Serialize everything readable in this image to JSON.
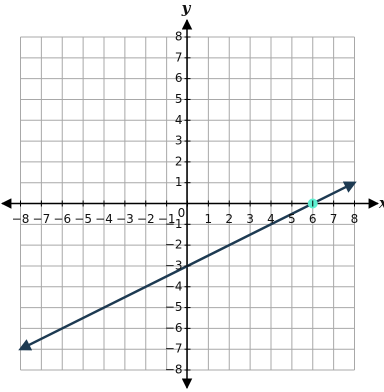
{
  "chart_data": {
    "type": "line",
    "xlabel": "x",
    "ylabel": "y",
    "x": [
      -8,
      8
    ],
    "series": [
      {
        "color": "#1d3a52",
        "values": [
          -7,
          1
        ]
      }
    ],
    "points": {
      "x": [
        6
      ],
      "y": [
        0
      ],
      "color": "#5ff0d2"
    },
    "xlim": [
      -8,
      8
    ],
    "ylim": [
      -8,
      8
    ],
    "xticks": [
      {
        "value": -8,
        "label": "−8"
      },
      {
        "value": -7,
        "label": "−7"
      },
      {
        "value": -6,
        "label": "−6"
      },
      {
        "value": -5,
        "label": "−5"
      },
      {
        "value": -4,
        "label": "−4"
      },
      {
        "value": -3,
        "label": "−3"
      },
      {
        "value": -2,
        "label": "−2"
      },
      {
        "value": -1,
        "label": "−1"
      },
      0,
      1,
      2,
      3,
      4,
      5,
      6,
      7,
      8
    ],
    "yticks": [
      {
        "value": -8,
        "label": "−8"
      },
      {
        "value": -7,
        "label": "−7"
      },
      {
        "value": -6,
        "label": "−6"
      },
      {
        "value": -5,
        "label": "−5"
      },
      {
        "value": -4,
        "label": "−4"
      },
      {
        "value": -3,
        "label": "−3"
      },
      {
        "value": -2,
        "label": "−2"
      },
      {
        "value": -1,
        "label": "−1"
      },
      1,
      2,
      3,
      4,
      5,
      6,
      7,
      8
    ],
    "grid": true
  }
}
